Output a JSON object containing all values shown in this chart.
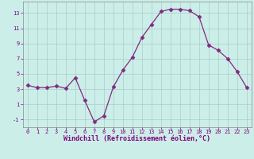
{
  "x": [
    0,
    1,
    2,
    3,
    4,
    5,
    6,
    7,
    8,
    9,
    10,
    11,
    12,
    13,
    14,
    15,
    16,
    17,
    18,
    19,
    20,
    21,
    22,
    23
  ],
  "y": [
    3.5,
    3.2,
    3.2,
    3.4,
    3.1,
    4.5,
    1.5,
    -1.3,
    -0.5,
    3.3,
    5.5,
    7.2,
    9.8,
    11.5,
    13.2,
    13.5,
    13.5,
    13.3,
    12.5,
    8.8,
    8.1,
    7.0,
    5.3,
    3.2
  ],
  "line_color": "#7f2b7f",
  "marker": "D",
  "marker_size": 2.5,
  "bg_color": "#cceee8",
  "grid_color": "#aacccc",
  "xlabel": "Windchill (Refroidissement éolien,°C)",
  "xlabel_color": "#7f007f",
  "tick_color": "#7f007f",
  "xlim": [
    -0.5,
    23.5
  ],
  "ylim": [
    -2,
    14.5
  ],
  "yticks": [
    -1,
    1,
    3,
    5,
    7,
    9,
    11,
    13
  ],
  "xticks": [
    0,
    1,
    2,
    3,
    4,
    5,
    6,
    7,
    8,
    9,
    10,
    11,
    12,
    13,
    14,
    15,
    16,
    17,
    18,
    19,
    20,
    21,
    22,
    23
  ],
  "spine_color": "#888888"
}
